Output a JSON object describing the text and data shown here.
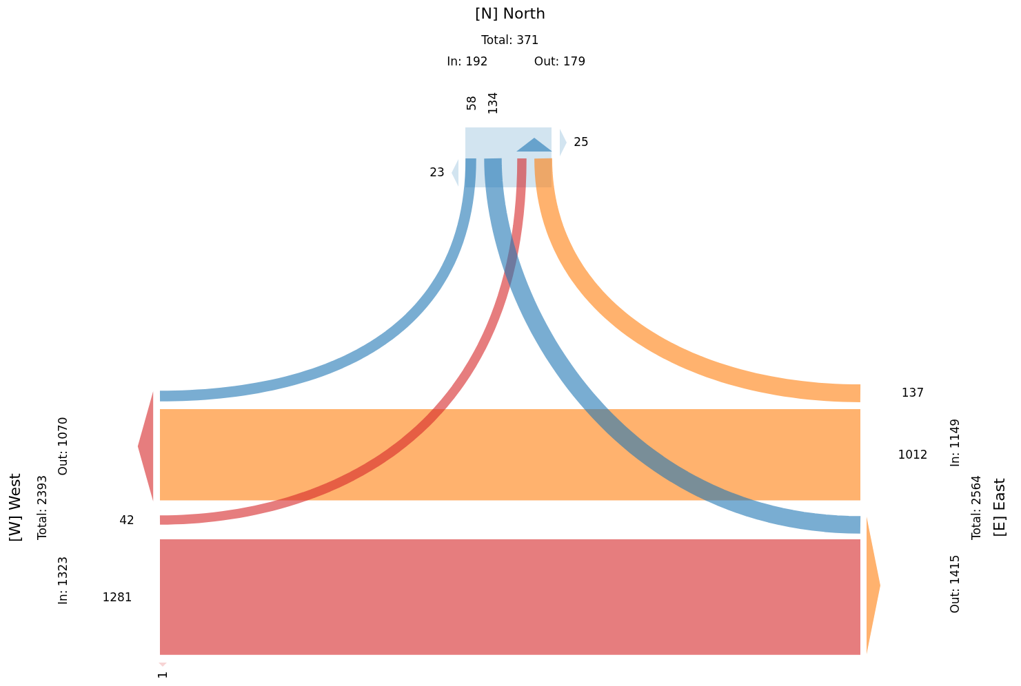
{
  "chart_data": {
    "type": "other",
    "categories": [
      "[N] North",
      "[W] West",
      "[E] East"
    ],
    "colors": [
      "#1f77b4",
      "#d62728",
      "#ff7f0e"
    ],
    "series": [
      {
        "values": [
          null,
          42,
          137
        ]
      },
      {
        "values": [
          58,
          null,
          1012
        ]
      },
      {
        "values": [
          134,
          1281,
          null
        ]
      }
    ],
    "data_labels": true,
    "annotations": [
      "Total: 371",
      "In: 192",
      "Out: 179",
      "Total: 2393",
      "In: 1323",
      "Out: 1070",
      "Total: 2564",
      "In: 1149",
      "Out: 1415",
      "25",
      "23",
      "1"
    ]
  }
}
